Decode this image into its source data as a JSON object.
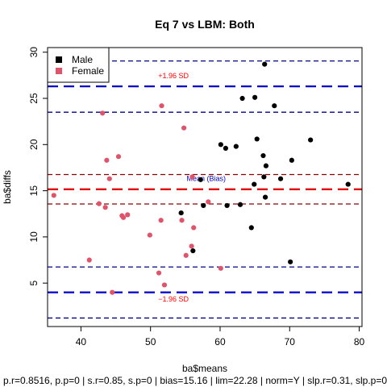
{
  "chart_data": {
    "type": "scatter",
    "title": "Eq 7 vs LBM: Both",
    "xlabel": "ba$means",
    "ylabel": "ba$diffs",
    "xlim": [
      35.2,
      80.4
    ],
    "ylim": [
      0.3,
      30.5
    ],
    "x_ticks": [
      40,
      50,
      60,
      70,
      80
    ],
    "y_ticks": [
      5,
      10,
      15,
      20,
      25,
      30
    ],
    "grid": false,
    "legend_position": "top-left",
    "footer": "p.r=0.8516, p.p=0 | s.r=0.85, s.p=0 | bias=15.16 | lim=22.28 | norm=Y | slp.r=0.31, slp.p=0",
    "series": [
      {
        "name": "Male",
        "color": "#000000",
        "points": [
          [
            54.4,
            12.6
          ],
          [
            56.1,
            8.5
          ],
          [
            57.2,
            16.2
          ],
          [
            57.6,
            13.4
          ],
          [
            60.1,
            20.0
          ],
          [
            60.8,
            19.6
          ],
          [
            61.0,
            13.4
          ],
          [
            62.3,
            19.8
          ],
          [
            62.9,
            13.5
          ],
          [
            63.2,
            25.0
          ],
          [
            64.5,
            11.0
          ],
          [
            64.9,
            15.7
          ],
          [
            65.0,
            25.1
          ],
          [
            65.3,
            20.6
          ],
          [
            66.2,
            18.8
          ],
          [
            66.3,
            16.5
          ],
          [
            66.4,
            28.7
          ],
          [
            66.5,
            14.3
          ],
          [
            66.6,
            17.7
          ],
          [
            67.8,
            24.2
          ],
          [
            68.7,
            16.3
          ],
          [
            70.1,
            7.3
          ],
          [
            70.3,
            18.3
          ],
          [
            73.0,
            20.5
          ],
          [
            78.4,
            15.7
          ]
        ]
      },
      {
        "name": "Female",
        "color": "#DF536B",
        "points": [
          [
            36.1,
            14.5
          ],
          [
            41.2,
            7.5
          ],
          [
            42.6,
            13.6
          ],
          [
            43.1,
            23.4
          ],
          [
            43.5,
            13.2
          ],
          [
            43.7,
            18.3
          ],
          [
            44.1,
            16.3
          ],
          [
            44.5,
            4.0
          ],
          [
            45.4,
            18.7
          ],
          [
            45.9,
            12.3
          ],
          [
            46.1,
            12.1
          ],
          [
            46.7,
            12.4
          ],
          [
            49.9,
            10.2
          ],
          [
            51.2,
            6.1
          ],
          [
            51.5,
            11.8
          ],
          [
            51.6,
            24.2
          ],
          [
            52.0,
            4.8
          ],
          [
            54.5,
            11.8
          ],
          [
            54.8,
            21.8
          ],
          [
            55.1,
            8.0
          ],
          [
            55.9,
            9.0
          ],
          [
            56.0,
            16.5
          ],
          [
            56.2,
            11.0
          ],
          [
            58.3,
            13.8
          ],
          [
            60.1,
            6.6
          ]
        ]
      }
    ],
    "reference_lines": [
      {
        "name": "Mean (Bias)",
        "y": 15.16,
        "color": "#DF0000",
        "style": "longdash",
        "width": 2.2
      },
      {
        "name": "bias-ci-upper",
        "y": 16.75,
        "color": "#8B0000",
        "style": "dash",
        "width": 1.3
      },
      {
        "name": "bias-ci-lower",
        "y": 13.57,
        "color": "#8B0000",
        "style": "dash",
        "width": 1.3
      },
      {
        "name": "+1.96 SD",
        "y": 26.3,
        "color": "#0000CD",
        "style": "longdash",
        "width": 2.2
      },
      {
        "name": "upper-loa-ci-upper",
        "y": 29.05,
        "color": "#00008B",
        "style": "dash",
        "width": 1.3
      },
      {
        "name": "upper-loa-ci-lower",
        "y": 23.5,
        "color": "#00008B",
        "style": "dash",
        "width": 1.3
      },
      {
        "name": "−1.96 SD",
        "y": 4.0,
        "color": "#0000CD",
        "style": "longdash",
        "width": 2.2
      },
      {
        "name": "lower-loa-ci-upper",
        "y": 6.75,
        "color": "#00008B",
        "style": "dash",
        "width": 1.3
      },
      {
        "name": "lower-loa-ci-lower",
        "y": 1.22,
        "color": "#00008B",
        "style": "dash",
        "width": 1.3
      }
    ],
    "annotations": [
      {
        "text": "+1.96 SD",
        "x": 53.3,
        "y": 27.2,
        "color": "#FF0000"
      },
      {
        "text": "Mean (Bias)",
        "x": 58.0,
        "y": 16.05,
        "color": "#0000CD"
      },
      {
        "text": "−1.96 SD",
        "x": 53.3,
        "y": 3.0,
        "color": "#FF0000"
      }
    ]
  }
}
